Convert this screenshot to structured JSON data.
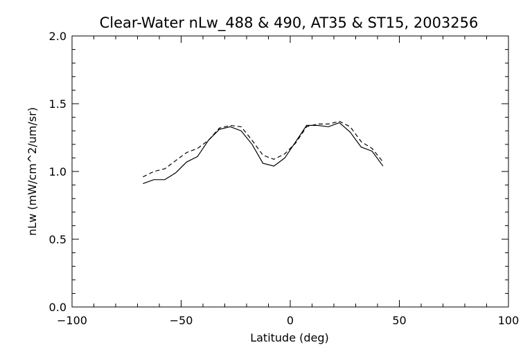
{
  "chart_data": {
    "type": "line",
    "title": "Clear-Water nLw_488 & 490, AT35 & ST15, 2003256",
    "xlabel": "Latitude (deg)",
    "ylabel": "nLw (mW/cm^2/um/sr)",
    "xlim": [
      -100,
      100
    ],
    "ylim": [
      0.0,
      2.0
    ],
    "xticks": [
      -100,
      -50,
      0,
      50,
      100
    ],
    "xtick_labels": [
      "−100",
      "−50",
      "0",
      "50",
      "100"
    ],
    "yticks": [
      0.0,
      0.5,
      1.0,
      1.5,
      2.0
    ],
    "ytick_labels": [
      "0.0",
      "0.5",
      "1.0",
      "1.5",
      "2.0"
    ],
    "grid": false,
    "series": [
      {
        "style": "solid",
        "x": [
          -67.5,
          -62.5,
          -57.5,
          -52.5,
          -47.5,
          -42.5,
          -37.5,
          -32.5,
          -27.5,
          -22.5,
          -17.5,
          -12.5,
          -7.5,
          -2.5,
          2.5,
          7.5,
          12.5,
          17.5,
          22.5,
          27.5,
          32.5,
          37.5,
          42.5
        ],
        "y": [
          0.91,
          0.94,
          0.94,
          0.99,
          1.07,
          1.11,
          1.23,
          1.31,
          1.33,
          1.3,
          1.2,
          1.06,
          1.04,
          1.1,
          1.22,
          1.34,
          1.34,
          1.33,
          1.36,
          1.29,
          1.18,
          1.15,
          1.04
        ]
      },
      {
        "style": "dashed",
        "x": [
          -67.5,
          -62.5,
          -57.5,
          -52.5,
          -47.5,
          -42.5,
          -37.5,
          -32.5,
          -27.5,
          -22.5,
          -17.5,
          -12.5,
          -7.5,
          -2.5,
          2.5,
          7.5,
          12.5,
          17.5,
          22.5,
          27.5,
          32.5,
          37.5,
          42.5
        ],
        "y": [
          0.96,
          1.0,
          1.02,
          1.08,
          1.14,
          1.17,
          1.23,
          1.32,
          1.34,
          1.33,
          1.23,
          1.12,
          1.09,
          1.13,
          1.21,
          1.33,
          1.35,
          1.35,
          1.37,
          1.33,
          1.22,
          1.17,
          1.07
        ]
      }
    ]
  }
}
